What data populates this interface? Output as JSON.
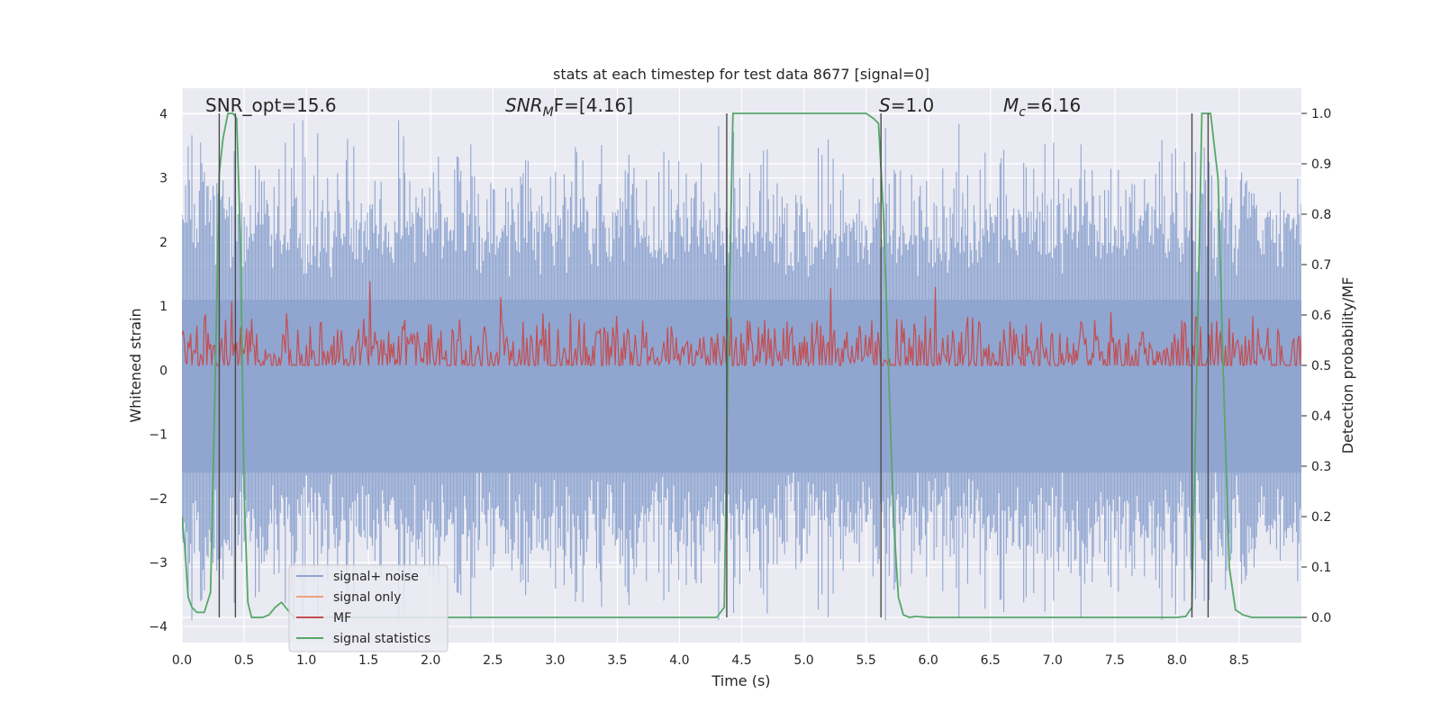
{
  "chart_data": {
    "type": "line",
    "title": "stats at each timestep for test data 8677 [signal=0]",
    "xlabel": "Time (s)",
    "ylabel": "Whitened strain",
    "y2label": "Detection probability/MF",
    "xlim": [
      0.0,
      9.0
    ],
    "ylim": [
      -4.25,
      4.4
    ],
    "y2lim": [
      -0.05,
      1.05
    ],
    "xticks": [
      "0.0",
      "0.5",
      "1.0",
      "1.5",
      "2.0",
      "2.5",
      "3.0",
      "3.5",
      "4.0",
      "4.5",
      "5.0",
      "5.5",
      "6.0",
      "6.5",
      "7.0",
      "7.5",
      "8.0",
      "8.5"
    ],
    "yticks": [
      "4",
      "3",
      "2",
      "1",
      "0",
      "−1",
      "−2",
      "−3",
      "−4"
    ],
    "y2ticks": [
      "1.0",
      "0.9",
      "0.8",
      "0.7",
      "0.6",
      "0.5",
      "0.4",
      "0.3",
      "0.2",
      "0.1",
      "0.0"
    ],
    "annotations": {
      "snr_opt": "SNR_opt=15.6",
      "snr_mf_label": "SNR",
      "snr_mf_sub": "M",
      "snr_mf_tail": "F=[4.16]",
      "s_label": "S",
      "s_value": "=1.0",
      "mc_label": "M",
      "mc_sub": "c",
      "mc_value": "=6.16"
    },
    "legend": {
      "position": "lower-left",
      "entries": [
        {
          "label": "signal+ noise",
          "color": "#8fa5d0"
        },
        {
          "label": "signal only",
          "color": "#f0a080"
        },
        {
          "label": "MF",
          "color": "#c44e52"
        },
        {
          "label": "signal statistics",
          "color": "#55a868"
        }
      ]
    },
    "series": [
      {
        "name": "signal+ noise",
        "axis": "left",
        "color": "#8fa5d0",
        "style": "noise",
        "n": 900,
        "max_abs": 3.9,
        "seed": 8677
      },
      {
        "name": "MF",
        "axis": "right",
        "color": "#c44e52",
        "style": "noise",
        "n": 900,
        "center": 0.52,
        "spread": 0.06,
        "seed": 4160
      },
      {
        "name": "signal statistics",
        "axis": "right",
        "color": "#55a868",
        "x": [
          0.0,
          0.02,
          0.05,
          0.08,
          0.12,
          0.18,
          0.23,
          0.27,
          0.3,
          0.33,
          0.37,
          0.41,
          0.44,
          0.47,
          0.5,
          0.53,
          0.56,
          0.6,
          0.65,
          0.7,
          0.75,
          0.8,
          0.9,
          1.0,
          1.5,
          2.0,
          3.0,
          4.0,
          4.3,
          4.36,
          4.39,
          4.43,
          4.5,
          5.0,
          5.5,
          5.56,
          5.6,
          5.64,
          5.68,
          5.72,
          5.76,
          5.8,
          5.85,
          5.9,
          6.0,
          6.5,
          7.0,
          7.5,
          8.0,
          8.07,
          8.12,
          8.16,
          8.2,
          8.27,
          8.33,
          8.37,
          8.42,
          8.47,
          8.53,
          8.6,
          8.7,
          9.0
        ],
        "y": [
          0.2,
          0.15,
          0.04,
          0.02,
          0.01,
          0.01,
          0.05,
          0.5,
          0.88,
          0.95,
          1.0,
          1.0,
          0.99,
          0.75,
          0.25,
          0.03,
          0.0,
          0.0,
          0.0,
          0.005,
          0.02,
          0.03,
          0.0,
          0.0,
          0.0,
          0.0,
          0.0,
          0.0,
          0.0,
          0.02,
          0.5,
          1.0,
          1.0,
          1.0,
          1.0,
          0.99,
          0.98,
          0.8,
          0.5,
          0.2,
          0.04,
          0.005,
          0.0,
          0.002,
          0.0,
          0.0,
          0.0,
          0.0,
          0.0,
          0.002,
          0.02,
          0.5,
          1.0,
          1.0,
          0.87,
          0.5,
          0.1,
          0.015,
          0.005,
          0.0,
          0.0,
          0.0
        ]
      }
    ],
    "vertical_markers": [
      0.3,
      0.43,
      4.38,
      5.62,
      8.12,
      8.25
    ]
  }
}
